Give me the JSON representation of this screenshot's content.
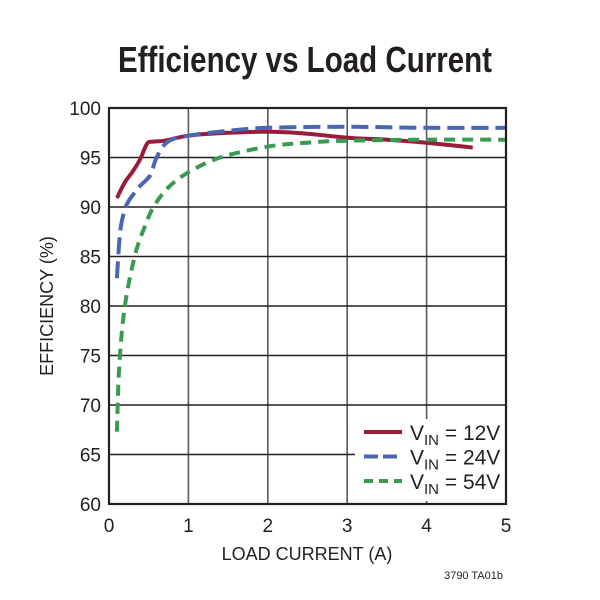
{
  "chart_data": {
    "type": "line",
    "title": "Efficiency vs Load Current",
    "xlabel": "LOAD CURRENT (A)",
    "ylabel": "EFFICIENCY (%)",
    "xlim": [
      0,
      5
    ],
    "ylim": [
      60,
      100
    ],
    "xticks": [
      0,
      1,
      2,
      3,
      4,
      5
    ],
    "yticks": [
      60,
      65,
      70,
      75,
      80,
      85,
      90,
      95,
      100
    ],
    "grid": true,
    "legend_position": "lower right",
    "figure_id": "3790 TA01b",
    "series": [
      {
        "name": "VIN = 12V",
        "legend_main": "V",
        "legend_sub": "IN",
        "legend_rest": " = 12V",
        "color": "#9b1b3a",
        "style": "solid",
        "x": [
          0.1,
          0.2,
          0.3,
          0.39,
          0.48,
          0.55,
          0.7,
          1.0,
          1.5,
          2.0,
          2.5,
          3.0,
          3.5,
          4.0,
          4.58
        ],
        "y": [
          90.9,
          92.5,
          93.6,
          94.8,
          96.4,
          96.6,
          96.7,
          97.2,
          97.5,
          97.6,
          97.4,
          97.0,
          96.8,
          96.5,
          96.0
        ]
      },
      {
        "name": "VIN = 24V",
        "legend_main": "V",
        "legend_sub": "IN",
        "legend_rest": " = 24V",
        "color": "#4a66b0",
        "style": "long-dash",
        "x": [
          0.1,
          0.13,
          0.16,
          0.22,
          0.3,
          0.4,
          0.52,
          0.6,
          0.74,
          1.0,
          1.5,
          2.0,
          3.0,
          4.0,
          5.0
        ],
        "y": [
          82.8,
          86.5,
          88.5,
          90.2,
          91.2,
          92.2,
          93.2,
          95.0,
          96.6,
          97.2,
          97.7,
          98.0,
          98.1,
          98.0,
          98.0
        ]
      },
      {
        "name": "VIN = 54V",
        "legend_main": "V",
        "legend_sub": "IN",
        "legend_rest": " = 54V",
        "color": "#3a9a52",
        "style": "short-dash",
        "x": [
          0.1,
          0.13,
          0.2,
          0.33,
          0.45,
          0.56,
          0.75,
          1.0,
          1.4,
          2.0,
          2.5,
          3.0,
          4.0,
          5.0
        ],
        "y": [
          67.3,
          74.0,
          80.0,
          85.2,
          88.0,
          90.0,
          92.0,
          93.5,
          95.0,
          96.1,
          96.5,
          96.7,
          96.8,
          96.8
        ]
      }
    ]
  }
}
